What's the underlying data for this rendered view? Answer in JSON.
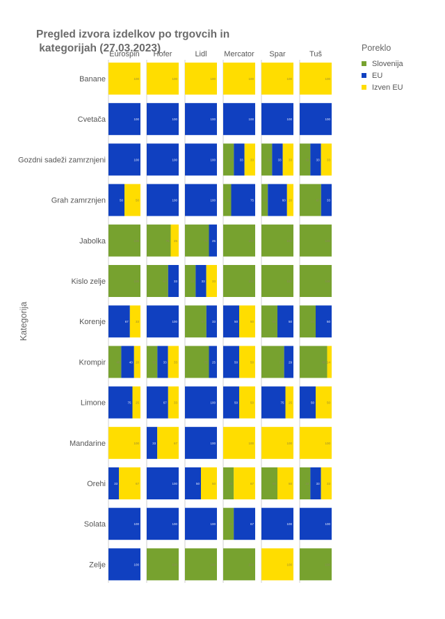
{
  "chart_data": {
    "type": "bar",
    "title": "Pregled izvora izdelkov po trgovcih in\n kategorijah (27.03.2023)",
    "ylabel": "Kategorija",
    "legend_title": "Poreklo",
    "legend_position": "top-right",
    "stores": [
      "Eurospin",
      "Hofer",
      "Lidl",
      "Mercator",
      "Spar",
      "Tuš"
    ],
    "categories": [
      "Banane",
      "Cvetača",
      "Gozdni sadeži zamrznjeni",
      "Grah zamrznjen",
      "Jabolka",
      "Kislo zelje",
      "Korenje",
      "Krompir",
      "Limone",
      "Mandarine",
      "Orehi",
      "Solata",
      "Zelje"
    ],
    "series": [
      {
        "name": "Slovenija",
        "color": "#77a22f"
      },
      {
        "name": "EU",
        "color": "#1040c0"
      },
      {
        "name": "Izven EU",
        "color": "#ffdd00"
      }
    ],
    "values": {
      "Banane": [
        [
          0,
          0,
          100
        ],
        [
          0,
          0,
          100
        ],
        [
          0,
          0,
          100
        ],
        [
          0,
          0,
          100
        ],
        [
          0,
          0,
          100
        ],
        [
          0,
          0,
          100
        ]
      ],
      "Cvetača": [
        [
          0,
          100,
          0
        ],
        [
          0,
          100,
          0
        ],
        [
          0,
          100,
          0
        ],
        [
          0,
          100,
          0
        ],
        [
          0,
          100,
          0
        ],
        [
          0,
          100,
          0
        ]
      ],
      "Gozdni sadeži zamrznjeni": [
        [
          0,
          100,
          0
        ],
        [
          0,
          100,
          0
        ],
        [
          0,
          100,
          0
        ],
        [
          33,
          33,
          33
        ],
        [
          33,
          33,
          33
        ],
        [
          33,
          33,
          33
        ]
      ],
      "Grah zamrznjen": [
        [
          0,
          50,
          50
        ],
        [
          0,
          100,
          0
        ],
        [
          0,
          100,
          0
        ],
        [
          25,
          75,
          0
        ],
        [
          20,
          60,
          20
        ],
        [
          67,
          33,
          0
        ]
      ],
      "Jabolka": [
        [
          100,
          0,
          0
        ],
        [
          75,
          0,
          25
        ],
        [
          75,
          25,
          0
        ],
        [
          100,
          0,
          0
        ],
        [
          100,
          0,
          0
        ],
        [
          100,
          0,
          0
        ]
      ],
      "Kislo zelje": [
        [
          100,
          0,
          0
        ],
        [
          67,
          33,
          0
        ],
        [
          33,
          33,
          33
        ],
        [
          100,
          0,
          0
        ],
        [
          100,
          0,
          0
        ],
        [
          100,
          0,
          0
        ]
      ],
      "Korenje": [
        [
          0,
          67,
          33
        ],
        [
          0,
          100,
          0
        ],
        [
          67,
          33,
          0
        ],
        [
          0,
          50,
          50
        ],
        [
          50,
          50,
          0
        ],
        [
          50,
          50,
          0
        ]
      ],
      "Krompir": [
        [
          40,
          40,
          20
        ],
        [
          33,
          33,
          33
        ],
        [
          75,
          25,
          0
        ],
        [
          0,
          50,
          50
        ],
        [
          71,
          29,
          0
        ],
        [
          86,
          0,
          14
        ]
      ],
      "Limone": [
        [
          0,
          75,
          25
        ],
        [
          0,
          67,
          33
        ],
        [
          0,
          100,
          0
        ],
        [
          0,
          50,
          50
        ],
        [
          0,
          75,
          25
        ],
        [
          0,
          50,
          50
        ]
      ],
      "Mandarine": [
        [
          0,
          0,
          100
        ],
        [
          0,
          33,
          67
        ],
        [
          0,
          100,
          0
        ],
        [
          0,
          0,
          100
        ],
        [
          0,
          0,
          100
        ],
        [
          0,
          0,
          100
        ]
      ],
      "Orehi": [
        [
          0,
          33,
          67
        ],
        [
          0,
          100,
          0
        ],
        [
          0,
          50,
          50
        ],
        [
          33,
          0,
          67
        ],
        [
          50,
          0,
          50
        ],
        [
          33,
          33,
          33
        ]
      ],
      "Solata": [
        [
          0,
          100,
          0
        ],
        [
          0,
          100,
          0
        ],
        [
          0,
          100,
          0
        ],
        [
          33,
          67,
          0
        ],
        [
          0,
          100,
          0
        ],
        [
          0,
          100,
          0
        ]
      ],
      "Zelje": [
        [
          0,
          100,
          0
        ],
        [
          100,
          0,
          0
        ],
        [
          100,
          0,
          0
        ],
        [
          100,
          0,
          0
        ],
        [
          0,
          0,
          100
        ],
        [
          100,
          0,
          0
        ]
      ]
    }
  }
}
